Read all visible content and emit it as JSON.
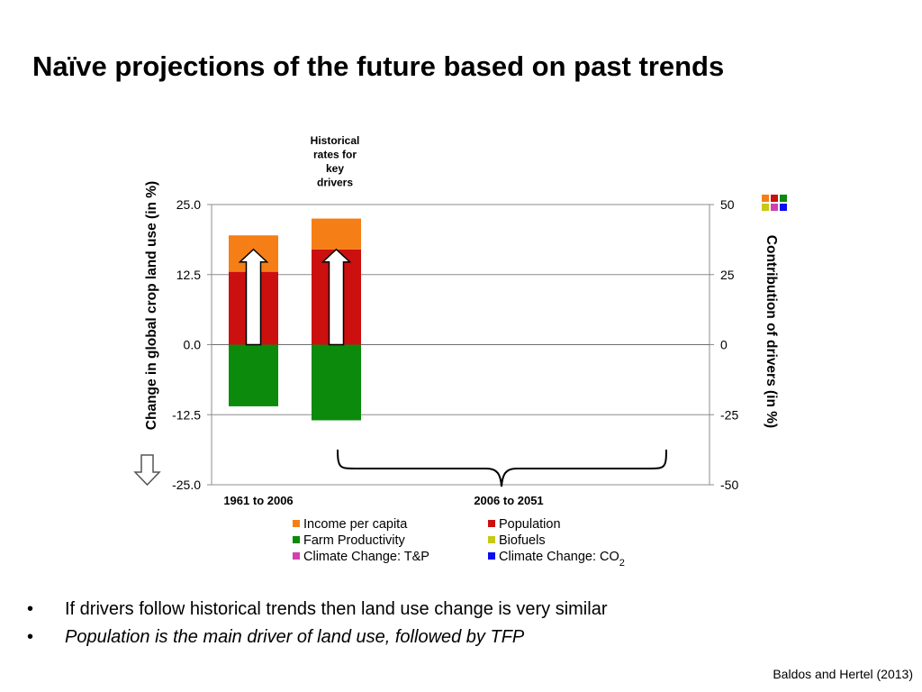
{
  "slide": {
    "title": "Naïve projections of the future based on past trends",
    "bullets": [
      {
        "text": "If drivers follow historical trends then land use change is very similar",
        "italic": false
      },
      {
        "text": "Population is the main driver of land use, followed by TFP",
        "italic": true
      }
    ],
    "citation": "Baldos and Hertel (2013)"
  },
  "chart_data": {
    "type": "bar",
    "stacked": true,
    "annotation": [
      "Historical",
      "rates for",
      "key",
      "drivers"
    ],
    "ylabel_left": "Change in global crop land use (in %)",
    "ylabel_right": "Contribution of drivers  (in %)",
    "ylim_left": [
      -25,
      25
    ],
    "ylim_right": [
      -50,
      50
    ],
    "yticks_left": [
      "25.0",
      "12.5",
      "0.0",
      "-12.5",
      "-25.0"
    ],
    "yticks_right": [
      "50",
      "25",
      "0",
      "-25",
      "-50"
    ],
    "grid": true,
    "period_labels": [
      "1961 to 2006",
      "2006 to 2051"
    ],
    "bars": [
      {
        "total": 17,
        "segments": {
          "Population": 13,
          "Income per capita": 6.5,
          "Farm Productivity": -11
        }
      },
      {
        "total": 17,
        "segments": {
          "Population": 17,
          "Income per capita": 5.5,
          "Farm Productivity": -13.5
        }
      }
    ],
    "legend": [
      {
        "label": "Income per capita",
        "color": "#f57f16"
      },
      {
        "label": "Population",
        "color": "#cc0f0f"
      },
      {
        "label": "Farm Productivity",
        "color": "#0b8a0b"
      },
      {
        "label": "Biofuels",
        "color": "#c8c816"
      },
      {
        "label": "Climate Change: T&P",
        "color": "#d040b0"
      },
      {
        "label": "Climate Change: CO",
        "subscript": "2",
        "color": "#0b0bf5"
      }
    ],
    "key_icon_colors": [
      "#f57f16",
      "#cc0f0f",
      "#0b8a0b",
      "#c8c816",
      "#d040b0",
      "#0b0bf5"
    ]
  }
}
